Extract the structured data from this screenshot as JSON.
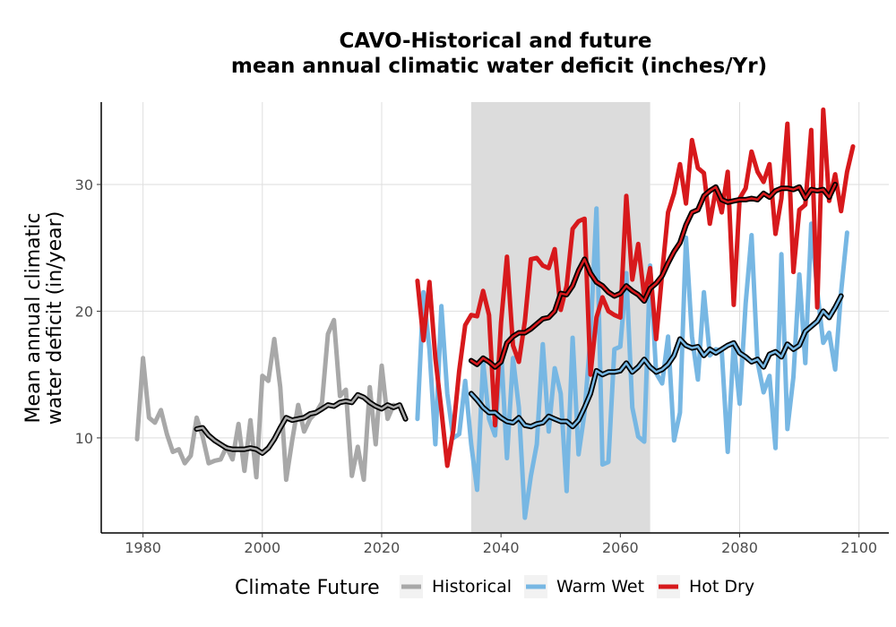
{
  "chart_data": {
    "type": "line",
    "title": [
      "CAVO-Historical and future",
      "mean annual climatic water deficit (inches/Yr)"
    ],
    "xlabel": "",
    "ylabel": [
      "Mean annual climatic",
      "water deficit (in/year)"
    ],
    "xlim": [
      1973,
      2105
    ],
    "ylim": [
      2.5,
      36.5
    ],
    "xticks": [
      1980,
      2000,
      2020,
      2040,
      2060,
      2080,
      2100
    ],
    "yticks": [
      10,
      20,
      30
    ],
    "grid": true,
    "shaded_period": [
      2035,
      2065
    ],
    "shaded_color": "#dcdcdc",
    "legend": {
      "title": "Climate Future",
      "position": "bottom"
    },
    "series": [
      {
        "name": "Historical",
        "color": "#a8a8a8",
        "x_start": 1979,
        "values": [
          9.9,
          16.3,
          11.6,
          11.2,
          12.2,
          10.3,
          8.9,
          9.1,
          8.0,
          8.6,
          11.6,
          10.1,
          8.0,
          8.2,
          8.3,
          9.3,
          8.3,
          11.1,
          7.4,
          11.4,
          6.9,
          14.9,
          14.5,
          17.8,
          14.0,
          6.7,
          9.8,
          12.6,
          10.5,
          11.5,
          12.0,
          12.8,
          18.2,
          19.3,
          13.3,
          13.8,
          7.0,
          9.3,
          6.7,
          14.0,
          9.5,
          15.7,
          11.5,
          12.6
        ],
        "smooth_x_start": 1989,
        "smooth": [
          10.7,
          10.8,
          10.2,
          9.8,
          9.5,
          9.2,
          9.1,
          9.1,
          9.1,
          9.2,
          9.1,
          8.8,
          9.2,
          9.9,
          10.8,
          11.6,
          11.4,
          11.5,
          11.6,
          11.9,
          12.0,
          12.3,
          12.6,
          12.5,
          12.8,
          12.9,
          12.8,
          13.4,
          13.2,
          12.8,
          12.5,
          12.3,
          12.6,
          12.4,
          12.6,
          11.5
        ]
      },
      {
        "name": "Warm Wet",
        "color": "#77b7e3",
        "x_start": 2026,
        "values": [
          11.5,
          21.5,
          17.0,
          9.5,
          20.4,
          13.5,
          10.0,
          10.3,
          14.5,
          9.5,
          5.9,
          16.0,
          11.5,
          10.2,
          17.0,
          8.4,
          16.3,
          12.4,
          3.7,
          7.0,
          9.5,
          17.4,
          10.5,
          15.5,
          13.5,
          5.8,
          17.9,
          8.7,
          12.0,
          18.0,
          28.1,
          7.9,
          8.1,
          17.0,
          17.2,
          23.0,
          12.4,
          10.1,
          9.7,
          23.6,
          15.1,
          14.3,
          18.0,
          9.8,
          12.0,
          25.8,
          18.0,
          14.6,
          21.5,
          16.5,
          17.0,
          16.9,
          8.9,
          17.5,
          12.7,
          20.6,
          26.0,
          16.0,
          13.6,
          14.9,
          9.2,
          24.5,
          10.7,
          14.8,
          22.9,
          15.9,
          26.9,
          21.6,
          17.5,
          18.3,
          15.4,
          21.5,
          26.2
        ],
        "smooth_x_start": 2035,
        "smooth": [
          13.5,
          13.0,
          12.4,
          12.0,
          12.0,
          11.6,
          11.3,
          11.2,
          11.6,
          11.0,
          10.9,
          11.1,
          11.2,
          11.7,
          11.5,
          11.3,
          11.3,
          10.9,
          11.4,
          12.4,
          13.5,
          15.3,
          15.0,
          15.2,
          15.2,
          15.3,
          15.9,
          15.2,
          15.6,
          16.2,
          15.6,
          15.2,
          15.4,
          15.8,
          16.5,
          17.8,
          17.3,
          17.1,
          17.2,
          16.5,
          17.0,
          16.7,
          17.0,
          17.3,
          17.5,
          16.7,
          16.4,
          16.0,
          16.2,
          15.6,
          16.6,
          16.8,
          16.4,
          17.4,
          17.0,
          17.3,
          18.4,
          18.8,
          19.2,
          20.0,
          19.5,
          20.3,
          21.2
        ]
      },
      {
        "name": "Hot Dry",
        "color": "#d7191c",
        "x_start": 2026,
        "values": [
          22.4,
          17.7,
          22.3,
          16.3,
          12.2,
          7.8,
          10.6,
          15.3,
          18.9,
          19.7,
          19.6,
          21.6,
          19.7,
          11.0,
          19.1,
          24.3,
          17.3,
          16.0,
          19.2,
          24.1,
          24.2,
          23.6,
          23.4,
          24.9,
          20.1,
          22.0,
          26.5,
          27.1,
          27.3,
          15.0,
          19.5,
          21.1,
          20.0,
          19.7,
          19.5,
          29.1,
          22.5,
          25.3,
          21.1,
          23.4,
          17.8,
          23.0,
          27.8,
          29.3,
          31.6,
          28.5,
          33.5,
          31.3,
          30.9,
          26.9,
          29.6,
          27.8,
          31.0,
          20.5,
          28.9,
          29.7,
          32.6,
          31.0,
          30.2,
          31.6,
          26.1,
          28.9,
          34.8,
          23.1,
          28.0,
          28.4,
          34.3,
          20.3,
          35.9,
          28.7,
          30.8,
          27.9,
          31.0,
          33.0
        ],
        "smooth_x_start": 2035,
        "smooth": [
          16.1,
          15.8,
          16.3,
          16.0,
          15.6,
          16.0,
          17.5,
          18.0,
          18.3,
          18.3,
          18.6,
          19.0,
          19.4,
          19.5,
          20.0,
          21.4,
          21.3,
          22.0,
          23.2,
          24.1,
          23.0,
          22.3,
          22.0,
          21.5,
          21.2,
          21.4,
          22.0,
          21.6,
          21.3,
          20.8,
          21.8,
          22.2,
          22.8,
          23.8,
          24.7,
          25.4,
          26.8,
          27.8,
          28.0,
          29.1,
          29.5,
          29.8,
          28.8,
          28.6,
          28.7,
          28.8,
          28.8,
          28.9,
          28.8,
          29.3,
          29.0,
          29.5,
          29.7,
          29.7,
          29.6,
          29.8,
          28.9,
          29.6,
          29.5,
          29.6,
          29.0,
          30.0
        ]
      }
    ]
  }
}
